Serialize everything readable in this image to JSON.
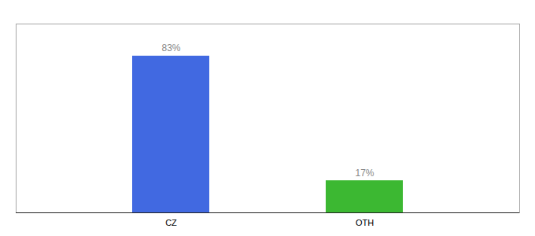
{
  "chart_data": {
    "type": "bar",
    "categories": [
      "CZ",
      "OTH"
    ],
    "values": [
      83,
      17
    ],
    "value_labels": [
      "83%",
      "17%"
    ],
    "colors": [
      "#4169e1",
      "#3cb832"
    ],
    "ylim": [
      0,
      100
    ],
    "data_labels": true,
    "tick_labels": "x",
    "grid": false
  }
}
